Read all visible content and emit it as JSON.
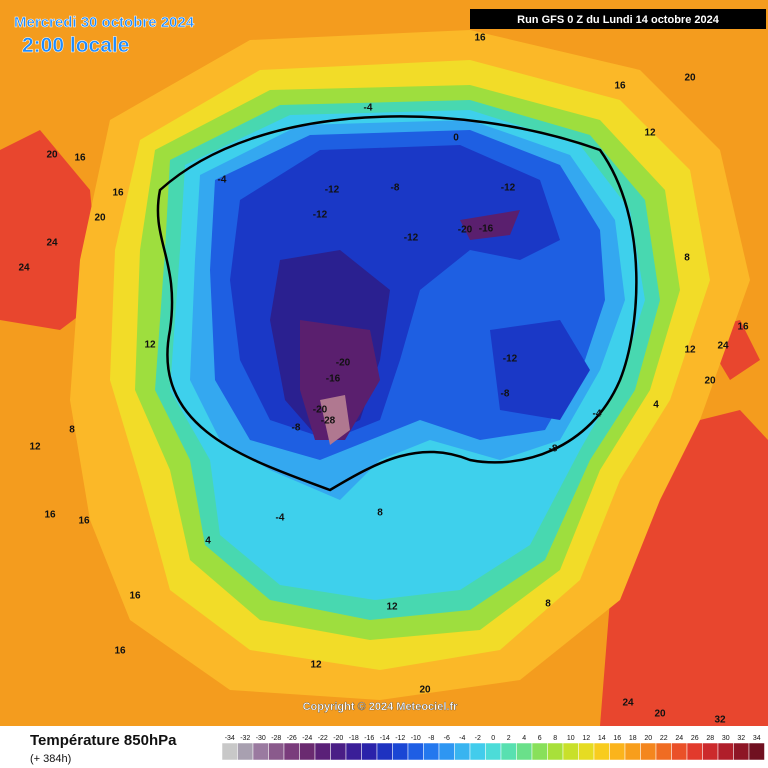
{
  "header": {
    "date": "Mercredi 30 octobre 2024",
    "time": "2:00 locale",
    "run": "Run GFS 0 Z du Lundi 14 octobre 2024"
  },
  "copyright": "Copyright © 2024 Meteociel.fr",
  "footer": {
    "title": "Température 850hPa",
    "lead": "(+ 384h)"
  },
  "legend": {
    "ticks": [
      -34,
      -32,
      -30,
      -28,
      -26,
      -24,
      -22,
      -20,
      -18,
      -16,
      -14,
      -12,
      -10,
      -8,
      -6,
      -4,
      -2,
      0,
      2,
      4,
      6,
      8,
      10,
      12,
      14,
      16,
      18,
      20,
      22,
      24,
      26,
      28,
      30,
      32,
      34
    ],
    "colors": [
      "#c8c8c8",
      "#a8a0b0",
      "#9a7aa0",
      "#8a5a8c",
      "#7a3c7c",
      "#6a2a70",
      "#5a2078",
      "#4a1e86",
      "#3a1e98",
      "#2a22aa",
      "#1e32c0",
      "#1a46d4",
      "#1e5ee4",
      "#2478ee",
      "#2e96f2",
      "#38b4f0",
      "#42ccec",
      "#4cdcd8",
      "#58e0b0",
      "#6ae08a",
      "#88e05a",
      "#a8e03a",
      "#c8e02a",
      "#e6dc22",
      "#f8cc1e",
      "#fbb41c",
      "#f89e1c",
      "#f4861e",
      "#f06c22",
      "#ea5028",
      "#e23a2c",
      "#cc2a2c",
      "#b01e2a",
      "#8e1626",
      "#701020"
    ]
  },
  "map_labels": [
    20,
    16,
    20,
    24,
    24,
    16,
    12,
    8,
    12,
    16,
    16,
    16,
    12,
    20,
    24,
    20,
    32,
    20,
    24,
    16,
    12,
    8,
    12,
    20,
    16,
    16,
    -4,
    0,
    -8,
    -12,
    -12,
    -12,
    -12,
    -16,
    -20,
    -20,
    -16,
    -28,
    -20,
    -12,
    -8,
    -4,
    -8,
    -4,
    4,
    8,
    8,
    12,
    16,
    -4,
    -8,
    4
  ]
}
